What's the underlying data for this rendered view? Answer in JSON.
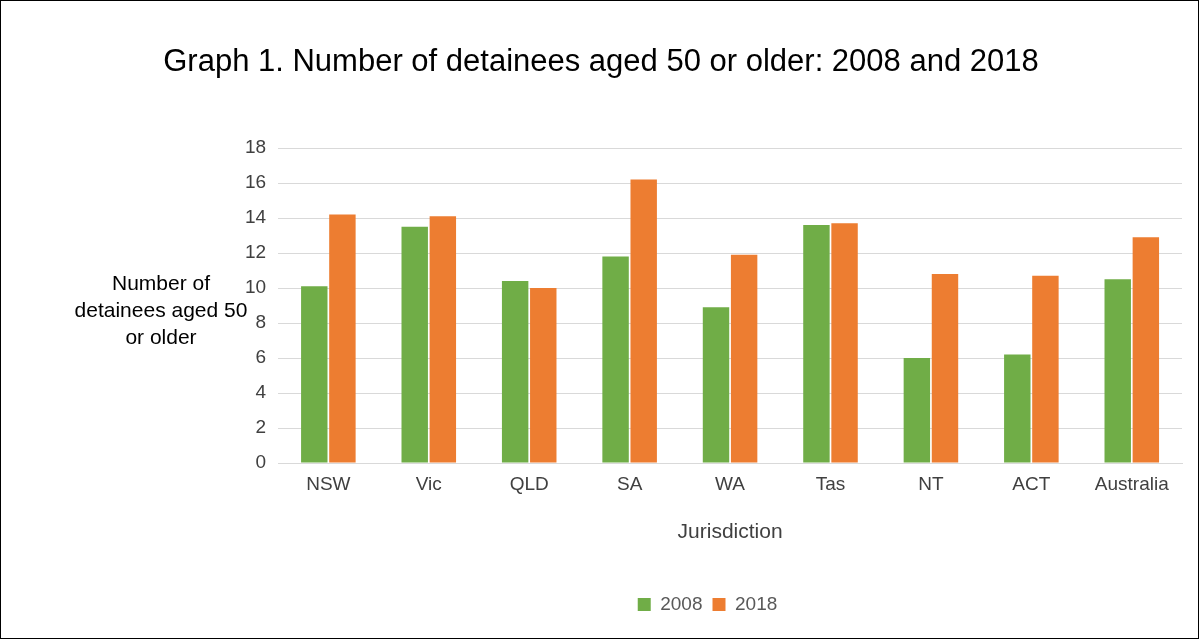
{
  "chart_data": {
    "type": "bar",
    "title": "Graph 1. Number of detainees aged 50 or older: 2008 and 2018",
    "xlabel": "Jurisdiction",
    "ylabel": "Number of detainees aged 50 or older",
    "categories": [
      "NSW",
      "Vic",
      "QLD",
      "SA",
      "WA",
      "Tas",
      "NT",
      "ACT",
      "Australia"
    ],
    "series": [
      {
        "name": "2008",
        "color": "#70ad47",
        "values": [
          10.1,
          13.5,
          10.4,
          11.8,
          8.9,
          13.6,
          6.0,
          6.2,
          10.5
        ]
      },
      {
        "name": "2018",
        "color": "#ed7d31",
        "values": [
          14.2,
          14.1,
          10.0,
          16.2,
          11.9,
          13.7,
          10.8,
          10.7,
          12.9
        ]
      }
    ],
    "ylim": [
      0,
      18
    ],
    "yticks": [
      0,
      2,
      4,
      6,
      8,
      10,
      12,
      14,
      16,
      18
    ],
    "grid": "y",
    "legend": "bottom"
  }
}
